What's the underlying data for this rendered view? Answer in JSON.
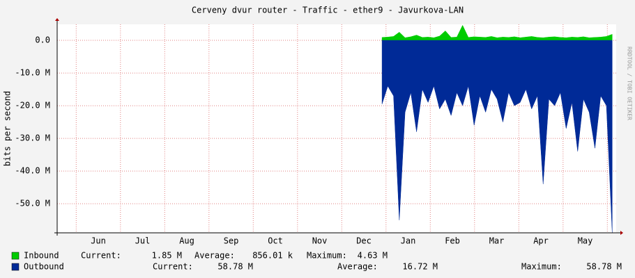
{
  "chart_data": {
    "type": "area",
    "title": "Cerveny dvur router - Traffic - ether9 - Javurkova-LAN",
    "side_label": "RRDTOOL / TOBI OETIKER",
    "y_label": "bits per second",
    "x": [
      7.91,
      8.04,
      8.17,
      8.3,
      8.43,
      8.56,
      8.69,
      8.82,
      8.95,
      9.08,
      9.21,
      9.34,
      9.47,
      9.6,
      9.73,
      9.86,
      9.99,
      10.12,
      10.25,
      10.38,
      10.51,
      10.64,
      10.77,
      10.9,
      11.03,
      11.16,
      11.29,
      11.42,
      11.55,
      11.68,
      11.81,
      11.94,
      12.07,
      12.2,
      12.33,
      12.46,
      12.59,
      12.72,
      12.85,
      12.98,
      13.11
    ],
    "series": [
      {
        "name": "Inbound",
        "color": "#00cc00",
        "values": [
          0.9,
          1.0,
          1.2,
          2.5,
          0.8,
          1.1,
          1.6,
          0.9,
          1.0,
          0.8,
          1.3,
          2.9,
          0.9,
          1.0,
          4.6,
          0.9,
          1.1,
          1.0,
          0.9,
          1.2,
          0.8,
          1.0,
          0.9,
          1.1,
          0.8,
          1.0,
          1.2,
          0.9,
          0.8,
          1.0,
          1.1,
          0.9,
          0.8,
          1.0,
          0.9,
          1.1,
          0.8,
          0.9,
          1.0,
          1.2,
          1.85
        ],
        "stats": [
          "Current:",
          "1.85 M",
          "Average:",
          "856.01 k",
          "Maximum:",
          "4.63 M"
        ]
      },
      {
        "name": "Outbound",
        "color": "#002a97",
        "values": [
          -19.5,
          -14,
          -17,
          -55,
          -22,
          -16,
          -28,
          -15,
          -19,
          -14,
          -21,
          -18,
          -23,
          -16,
          -20,
          -14,
          -26,
          -17,
          -22,
          -15,
          -18,
          -25,
          -16,
          -20,
          -19,
          -15,
          -21,
          -17,
          -44,
          -18,
          -20,
          -16,
          -27,
          -19,
          -34,
          -18,
          -22,
          -33,
          -17,
          -20,
          -58.78
        ],
        "stats": [
          "Current:",
          "58.78 M",
          "Average:",
          "16.72 M",
          "Maximum:",
          "58.78 M"
        ]
      }
    ],
    "xlim": [
      0.57,
      13.2
    ],
    "xticks": [
      {
        "value": 1.5,
        "label": "Jun"
      },
      {
        "value": 2.5,
        "label": "Jul"
      },
      {
        "value": 3.5,
        "label": "Aug"
      },
      {
        "value": 4.5,
        "label": "Sep"
      },
      {
        "value": 5.5,
        "label": "Oct"
      },
      {
        "value": 6.5,
        "label": "Nov"
      },
      {
        "value": 7.5,
        "label": "Dec"
      },
      {
        "value": 8.5,
        "label": "Jan"
      },
      {
        "value": 9.5,
        "label": "Feb"
      },
      {
        "value": 10.5,
        "label": "Mar"
      },
      {
        "value": 11.5,
        "label": "Apr"
      },
      {
        "value": 12.5,
        "label": "May"
      }
    ],
    "xgrid": [
      1,
      2,
      3,
      4,
      5,
      6,
      7,
      8,
      9,
      10,
      11,
      12,
      13
    ],
    "ylim": [
      -58.9,
      4.9
    ],
    "yticks": [
      {
        "value": 0,
        "label": "0.0"
      },
      {
        "value": -10,
        "label": "-10.0 M"
      },
      {
        "value": -20,
        "label": "-20.0 M"
      },
      {
        "value": -30,
        "label": "-30.0 M"
      },
      {
        "value": -40,
        "label": "-40.0 M"
      },
      {
        "value": -50,
        "label": "-50.0 M"
      }
    ],
    "grid": true
  }
}
